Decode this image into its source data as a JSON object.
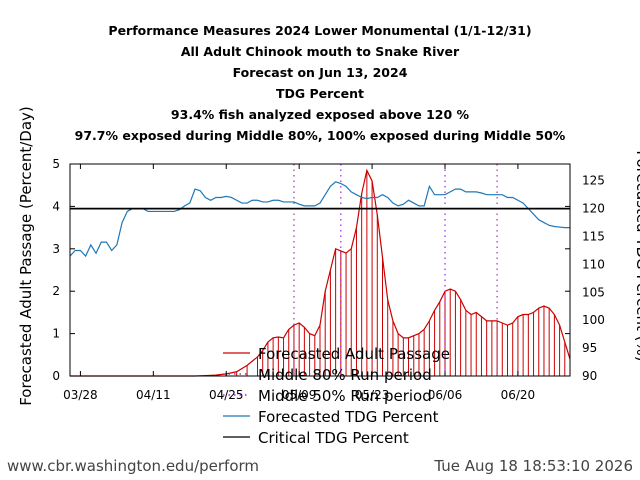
{
  "titles": [
    "Performance Measures 2024 Lower Monumental (1/1-12/31)",
    "All Adult Chinook mouth to Snake River",
    "Forecast on Jun 13, 2024",
    "TDG Percent",
    "93.4% fish analyzed exposed above 120 %",
    "97.7% exposed during Middle 80%, 100% exposed during Middle 50%"
  ],
  "footer": {
    "url": "www.cbr.washington.edu/perform",
    "timestamp": "Tue Aug 18 18:53:10 2026"
  },
  "chart_data": {
    "type": "line",
    "xlabel": "",
    "ylabel": "Forecasted Adult Passage (Percent/Day)",
    "ylabel_right": "Forecasted TDG Percent (%)",
    "x_tick_labels": [
      "03/28",
      "04/11",
      "04/25",
      "05/09",
      "05/23",
      "06/06",
      "06/20"
    ],
    "x_tick_days": [
      0,
      14,
      28,
      42,
      56,
      70,
      84
    ],
    "x_range_days": [
      -2,
      94
    ],
    "ylim": [
      0,
      5
    ],
    "ylim_right": [
      90,
      128
    ],
    "yticks_left": [
      0,
      1,
      2,
      3,
      4,
      5
    ],
    "yticks_right": [
      90,
      95,
      100,
      105,
      110,
      115,
      120,
      125
    ],
    "critical_tdg": 120,
    "middle_80_run_period_days": [
      41,
      80
    ],
    "middle_50_run_period_days": [
      50,
      70
    ],
    "legend": [
      {
        "label": "Forecasted Adult Passage",
        "color": "#cc0000",
        "style": "line"
      },
      {
        "label": "Middle 80% Run period",
        "color": "#9b3c9b",
        "style": "dotted"
      },
      {
        "label": "Middle 50% Run period",
        "color": "#a020f0",
        "style": "dotted"
      },
      {
        "label": "Forecasted TDG Percent",
        "color": "#1f77b4",
        "style": "line"
      },
      {
        "label": "Critical TDG Percent",
        "color": "#000000",
        "style": "line"
      }
    ],
    "series": [
      {
        "name": "Forecasted Adult Passage",
        "axis": "left",
        "x": [
          -2,
          0,
          2,
          4,
          6,
          8,
          10,
          12,
          14,
          16,
          18,
          20,
          22,
          24,
          26,
          28,
          30,
          32,
          34,
          35,
          36,
          37,
          38,
          39,
          40,
          41,
          42,
          43,
          44,
          45,
          46,
          47,
          48,
          49,
          50,
          51,
          52,
          53,
          54,
          55,
          56,
          57,
          58,
          59,
          60,
          61,
          62,
          63,
          64,
          65,
          66,
          67,
          68,
          69,
          70,
          71,
          72,
          73,
          74,
          75,
          76,
          77,
          78,
          79,
          80,
          81,
          82,
          83,
          84,
          85,
          86,
          87,
          88,
          89,
          90,
          91,
          92,
          93,
          94
        ],
        "values": [
          0,
          0,
          0,
          0,
          0,
          0,
          0,
          0,
          0,
          0,
          0,
          0,
          0,
          0.01,
          0.02,
          0.05,
          0.1,
          0.25,
          0.45,
          0.6,
          0.8,
          0.9,
          0.92,
          0.9,
          1.1,
          1.2,
          1.25,
          1.15,
          1.0,
          0.95,
          1.2,
          2.0,
          2.5,
          3.0,
          2.95,
          2.9,
          3.0,
          3.5,
          4.3,
          4.85,
          4.6,
          3.8,
          2.8,
          1.8,
          1.3,
          1.0,
          0.9,
          0.9,
          0.95,
          1.0,
          1.1,
          1.3,
          1.55,
          1.75,
          2.0,
          2.05,
          2.0,
          1.8,
          1.55,
          1.45,
          1.5,
          1.4,
          1.3,
          1.3,
          1.3,
          1.25,
          1.2,
          1.25,
          1.4,
          1.45,
          1.45,
          1.5,
          1.6,
          1.65,
          1.6,
          1.45,
          1.2,
          0.8,
          0.4
        ]
      },
      {
        "name": "Forecasted TDG Percent",
        "axis": "right",
        "x": [
          -2,
          -1,
          0,
          1,
          2,
          3,
          4,
          5,
          6,
          7,
          8,
          9,
          10,
          11,
          12,
          13,
          14,
          15,
          16,
          17,
          18,
          19,
          20,
          21,
          22,
          23,
          24,
          25,
          26,
          27,
          28,
          29,
          30,
          31,
          32,
          33,
          34,
          35,
          36,
          37,
          38,
          39,
          40,
          41,
          42,
          43,
          44,
          45,
          46,
          47,
          48,
          49,
          50,
          51,
          52,
          53,
          54,
          55,
          56,
          57,
          58,
          59,
          60,
          61,
          62,
          63,
          64,
          65,
          66,
          67,
          68,
          69,
          70,
          71,
          72,
          73,
          74,
          75,
          76,
          77,
          78,
          79,
          80,
          81,
          82,
          83,
          84,
          85,
          86,
          87,
          88,
          89,
          90,
          91,
          92,
          93,
          94
        ],
        "values": [
          111.5,
          112.5,
          112.5,
          111.5,
          113.5,
          112,
          114,
          114,
          112.5,
          113.5,
          117.5,
          119.5,
          120,
          120,
          120,
          119.5,
          119.5,
          119.5,
          119.5,
          119.5,
          119.5,
          119.8,
          120.5,
          121,
          123.5,
          123.2,
          122,
          121.5,
          122,
          122,
          122.2,
          122,
          121.5,
          121,
          121,
          121.5,
          121.5,
          121.2,
          121.2,
          121.5,
          121.5,
          121.2,
          121.2,
          121.2,
          120.8,
          120.5,
          120.5,
          120.5,
          121,
          122.5,
          124,
          124.8,
          124.5,
          124,
          123,
          122.5,
          122,
          121.8,
          122,
          122,
          122.5,
          122,
          121,
          120.5,
          120.8,
          121.5,
          121,
          120.5,
          120.5,
          124,
          122.5,
          122.5,
          122.5,
          123,
          123.5,
          123.5,
          123,
          123,
          123,
          122.8,
          122.5,
          122.5,
          122.5,
          122.5,
          122,
          122,
          121.5,
          121,
          120,
          119,
          118,
          117.5,
          117,
          116.8,
          116.7,
          116.6,
          116.6
        ]
      }
    ]
  }
}
